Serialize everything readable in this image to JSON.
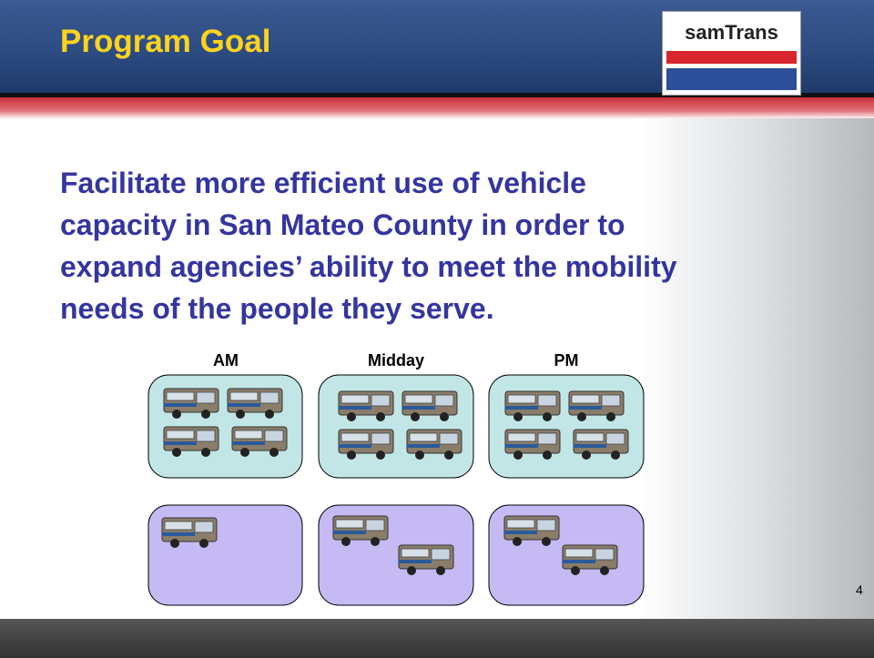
{
  "header": {
    "title": "Program Goal",
    "logo": "samTrans"
  },
  "goal": {
    "lines": [
      "Facilitate more efficient use of vehicle",
      "capacity in San Mateo County in order to",
      "expand agencies’ ability to meet the mobility",
      "needs of the people they serve."
    ]
  },
  "panels": [
    {
      "label": "AM"
    },
    {
      "label": "Midday"
    },
    {
      "label": "PM"
    }
  ],
  "footer": {
    "page_number": "4"
  }
}
